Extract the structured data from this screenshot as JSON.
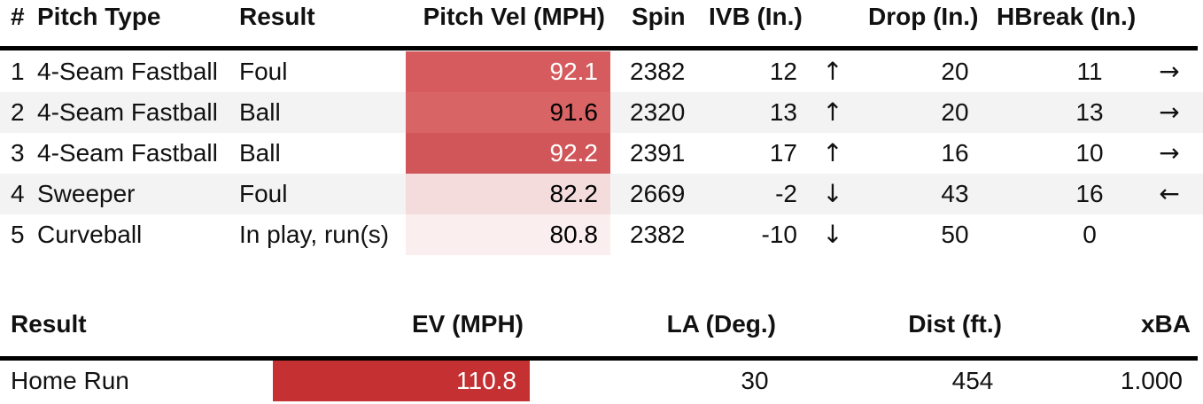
{
  "pitch_table": {
    "headers": {
      "num": "#",
      "pitch_type": "Pitch Type",
      "result": "Result",
      "velocity": "Pitch Vel (MPH)",
      "spin": "Spin",
      "ivb": "IVB (In.)",
      "drop": "Drop (In.)",
      "hbreak": "HBreak (In.)"
    },
    "rows": [
      {
        "num": "1",
        "pitch_type": "4-Seam Fastball",
        "result": "Foul",
        "velocity": "92.1",
        "spin": "2382",
        "ivb": "12",
        "ivb_arrow": "↑",
        "drop": "20",
        "hbreak": "11",
        "hbreak_arrow": "→",
        "vel_bg": "#d55b5e",
        "vel_fg": "#ffffff"
      },
      {
        "num": "2",
        "pitch_type": "4-Seam Fastball",
        "result": "Ball",
        "velocity": "91.6",
        "spin": "2320",
        "ivb": "13",
        "ivb_arrow": "↑",
        "drop": "20",
        "hbreak": "13",
        "hbreak_arrow": "→",
        "vel_bg": "#d96466",
        "vel_fg": "#000000"
      },
      {
        "num": "3",
        "pitch_type": "4-Seam Fastball",
        "result": "Ball",
        "velocity": "92.2",
        "spin": "2391",
        "ivb": "17",
        "ivb_arrow": "↑",
        "drop": "16",
        "hbreak": "10",
        "hbreak_arrow": "→",
        "vel_bg": "#d15659",
        "vel_fg": "#ffffff"
      },
      {
        "num": "4",
        "pitch_type": "Sweeper",
        "result": "Foul",
        "velocity": "82.2",
        "spin": "2669",
        "ivb": "-2",
        "ivb_arrow": "↓",
        "drop": "43",
        "hbreak": "16",
        "hbreak_arrow": "←",
        "vel_bg": "#f4dcdd",
        "vel_fg": "#000000"
      },
      {
        "num": "5",
        "pitch_type": "Curveball",
        "result": "In play, run(s)",
        "velocity": "80.8",
        "spin": "2382",
        "ivb": "-10",
        "ivb_arrow": "↓",
        "drop": "50",
        "hbreak": "0",
        "hbreak_arrow": "",
        "vel_bg": "#fbeeee",
        "vel_fg": "#000000"
      }
    ]
  },
  "hit_table": {
    "headers": {
      "result": "Result",
      "ev": "EV (MPH)",
      "la": "LA (Deg.)",
      "dist": "Dist (ft.)",
      "xba": "xBA"
    },
    "row": {
      "result": "Home Run",
      "ev": "110.8",
      "la": "30",
      "dist": "454",
      "xba": "1.000",
      "ev_bg": "#c53133",
      "ev_fg": "#ffffff"
    }
  },
  "colors": {
    "stripe": "#f3f3f3",
    "rule": "#000000"
  }
}
